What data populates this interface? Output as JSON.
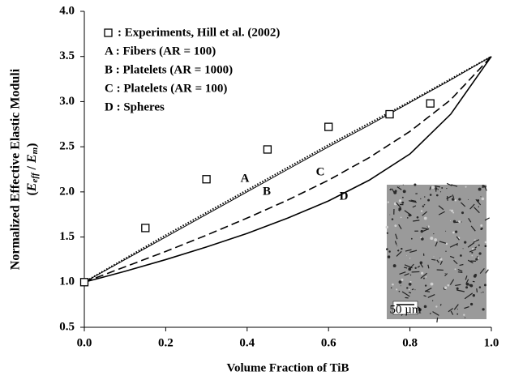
{
  "chart_data": {
    "type": "line",
    "x_label": "Volume Fraction of TiB",
    "y_label": "Normalized Effective Elastic Moduli",
    "y_label_parts": [
      "(",
      "E",
      "eff",
      " / ",
      "E",
      "m",
      ")"
    ],
    "xlim": [
      0,
      1
    ],
    "ylim": [
      0.5,
      4
    ],
    "xticks": [
      {
        "value": 0,
        "label": "0.0"
      },
      {
        "value": 0.2,
        "label": "0.2"
      },
      {
        "value": 0.4,
        "label": "0.4"
      },
      {
        "value": 0.6,
        "label": "0.6"
      },
      {
        "value": 0.8,
        "label": "0.8"
      },
      {
        "value": 1,
        "label": "1.0"
      }
    ],
    "yticks": [
      0.5,
      {
        "value": 1,
        "label": "1.0"
      },
      1.5,
      {
        "value": 2,
        "label": "2.0"
      },
      2.5,
      {
        "value": 3,
        "label": "3.0"
      },
      3.5,
      {
        "value": 4,
        "label": "4.0"
      }
    ],
    "grid": false,
    "experiments": {
      "name": ": Experiments, Hill et al. (2002)",
      "x": [
        0,
        0.15,
        0.3,
        0.45,
        0.6,
        0.75,
        0.85
      ],
      "values": [
        1.0,
        1.6,
        2.14,
        2.47,
        2.72,
        2.86,
        2.98
      ],
      "color": "#000000"
    },
    "x": [
      0,
      0.1,
      0.2,
      0.3,
      0.4,
      0.5,
      0.6,
      0.7,
      0.8,
      0.9,
      1.0
    ],
    "series": [
      {
        "name": "A :  Fibers (AR = 100)",
        "label": "A",
        "color": "#000000",
        "style": "dotted",
        "values": [
          1.0,
          1.26,
          1.52,
          1.77,
          2.02,
          2.27,
          2.52,
          2.76,
          3.0,
          3.25,
          3.5
        ]
      },
      {
        "name": "B :  Platelets (AR = 1000)",
        "label": "B",
        "color": "#000000",
        "style": "thin",
        "values": [
          1.0,
          1.25,
          1.5,
          1.75,
          2.0,
          2.25,
          2.5,
          2.74,
          2.99,
          3.24,
          3.5
        ]
      },
      {
        "name": "C :  Platelets (AR = 100)",
        "label": "C",
        "color": "#000000",
        "style": "dashed",
        "values": [
          1.0,
          1.17,
          1.34,
          1.52,
          1.71,
          1.91,
          2.13,
          2.38,
          2.67,
          3.02,
          3.5
        ]
      },
      {
        "name": "D :  Spheres",
        "label": "D",
        "color": "#000000",
        "style": "solid",
        "values": [
          1.0,
          1.12,
          1.25,
          1.39,
          1.54,
          1.71,
          1.9,
          2.13,
          2.42,
          2.86,
          3.5
        ]
      }
    ],
    "inset_scale_label": "50 µm"
  }
}
